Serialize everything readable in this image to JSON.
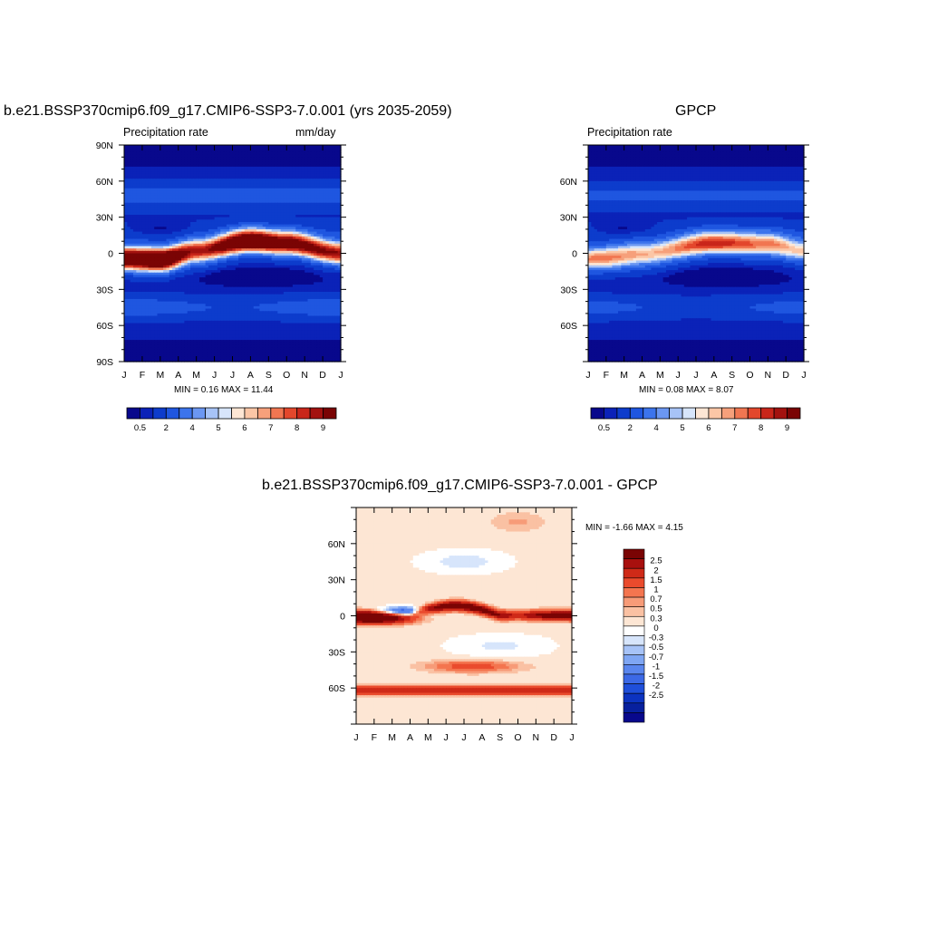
{
  "palette": {
    "abs": [
      "#08088c",
      "#0b22b8",
      "#0d3ccc",
      "#1f56e0",
      "#3c74ec",
      "#6b97f2",
      "#a7c3f7",
      "#d7e5fb",
      "#fde6d4",
      "#fbc6a6",
      "#f6a07b",
      "#f17651",
      "#e3472c",
      "#c9261a",
      "#a3120f",
      "#7a0404"
    ],
    "diff": [
      "#7a0404",
      "#a8100e",
      "#cf2a18",
      "#ea4b2d",
      "#f4754f",
      "#f79b78",
      "#fac1a3",
      "#fde6d4",
      "#ffffff",
      "#d7e5fb",
      "#a7c3f7",
      "#7fa6f3",
      "#5a86ee",
      "#3c69e6",
      "#1f4fda",
      "#0c33c0",
      "#07209e",
      "#08088c"
    ]
  },
  "panels": {
    "left": {
      "title": "b.e21.BSSP370cmip6.f09_g17.CMIP6-SSP3-7.0.001 (yrs 2035-2059)",
      "subtitle_left": "Precipitation rate",
      "subtitle_right": "mm/day",
      "minmax": "MIN =   0.16 MAX =  11.44"
    },
    "right": {
      "title": "GPCP",
      "subtitle_left": "Precipitation rate",
      "subtitle_right": "",
      "minmax": "MIN =   0.08 MAX =   8.07"
    },
    "bottom": {
      "title": "b.e21.BSSP370cmip6.f09_g17.CMIP6-SSP3-7.0.001 - GPCP",
      "minmax": "MIN =  -1.66 MAX =   4.15"
    }
  },
  "chart_data": [
    {
      "type": "heatmap",
      "title": "b.e21.BSSP370cmip6.f09_g17.CMIP6-SSP3-7.0.001 (yrs 2035-2059)",
      "subtitle": "Precipitation rate",
      "units": "mm/day",
      "x_tick_labels": [
        "J",
        "F",
        "M",
        "A",
        "M",
        "J",
        "J",
        "A",
        "S",
        "O",
        "N",
        "D",
        "J"
      ],
      "y_tick_labels": [
        "90N",
        "60N",
        "30N",
        "0",
        "30S",
        "60S",
        "90S"
      ],
      "xlim": [
        0,
        12
      ],
      "ylim": [
        -90,
        90
      ],
      "min": 0.16,
      "max": 11.44,
      "colorbar_labels": [
        "0.5",
        "2",
        "4",
        "5",
        "6",
        "7",
        "8",
        "9"
      ],
      "itcz": [
        {
          "month": 0,
          "lat": -4,
          "peak": 10.5
        },
        {
          "month": 2,
          "lat": -5,
          "peak": 11.4
        },
        {
          "month": 4,
          "lat": 2,
          "peak": 8.5
        },
        {
          "month": 7,
          "lat": 10,
          "peak": 11.2
        },
        {
          "month": 9,
          "lat": 8,
          "peak": 10
        },
        {
          "month": 12,
          "lat": 0,
          "peak": 9
        }
      ]
    },
    {
      "type": "heatmap",
      "title": "GPCP",
      "subtitle": "Precipitation rate",
      "x_tick_labels": [
        "J",
        "F",
        "M",
        "A",
        "M",
        "J",
        "J",
        "A",
        "S",
        "O",
        "N",
        "D",
        "J"
      ],
      "y_tick_labels": [
        "60N",
        "30N",
        "0",
        "30S",
        "60S"
      ],
      "xlim": [
        0,
        12
      ],
      "ylim": [
        -90,
        90
      ],
      "min": 0.08,
      "max": 8.07,
      "colorbar_labels": [
        "0.5",
        "2",
        "4",
        "5",
        "6",
        "7",
        "8",
        "9"
      ],
      "itcz": [
        {
          "month": 0,
          "lat": -4,
          "peak": 6.2
        },
        {
          "month": 3,
          "lat": 0,
          "peak": 6
        },
        {
          "month": 7,
          "lat": 8,
          "peak": 8
        },
        {
          "month": 10,
          "lat": 7,
          "peak": 7
        },
        {
          "month": 12,
          "lat": 2,
          "peak": 6
        }
      ]
    },
    {
      "type": "heatmap",
      "title": "b.e21.BSSP370cmip6.f09_g17.CMIP6-SSP3-7.0.001 - GPCP",
      "x_tick_labels": [
        "J",
        "F",
        "M",
        "A",
        "M",
        "J",
        "J",
        "A",
        "S",
        "O",
        "N",
        "D",
        "J"
      ],
      "y_tick_labels": [
        "60N",
        "30N",
        "0",
        "30S",
        "60S"
      ],
      "xlim": [
        0,
        12
      ],
      "ylim": [
        -90,
        90
      ],
      "min": -1.66,
      "max": 4.15,
      "colorbar_labels": [
        "2.5",
        "2",
        "1.5",
        "1",
        "0.7",
        "0.5",
        "0.3",
        "0",
        "-0.3",
        "-0.5",
        "-0.7",
        "-1",
        "-1.5",
        "-2",
        "-2.5"
      ]
    }
  ]
}
